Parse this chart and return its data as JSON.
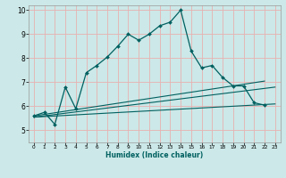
{
  "xlabel": "Humidex (Indice chaleur)",
  "xlim": [
    -0.5,
    23.5
  ],
  "ylim": [
    4.5,
    10.2
  ],
  "yticks": [
    5,
    6,
    7,
    8,
    9,
    10
  ],
  "xticks": [
    0,
    1,
    2,
    3,
    4,
    5,
    6,
    7,
    8,
    9,
    10,
    11,
    12,
    13,
    14,
    15,
    16,
    17,
    18,
    19,
    20,
    21,
    22,
    23
  ],
  "bg_color": "#cce8e8",
  "grid_color_major": "#e8b0b0",
  "line_color": "#006060",
  "main_line_x": [
    0,
    1,
    2,
    3,
    4,
    5,
    6,
    7,
    8,
    9,
    10,
    11,
    12,
    13,
    14,
    15,
    16,
    17,
    18,
    19,
    20,
    21,
    22
  ],
  "main_line_y": [
    5.6,
    5.75,
    5.25,
    6.8,
    5.9,
    7.4,
    7.7,
    8.05,
    8.5,
    9.0,
    8.75,
    9.0,
    9.35,
    9.5,
    10.0,
    8.3,
    7.6,
    7.7,
    7.2,
    6.85,
    6.85,
    6.15,
    6.05
  ],
  "line2_x": [
    0,
    23
  ],
  "line2_y": [
    5.55,
    6.8
  ],
  "line3_x": [
    0,
    23
  ],
  "line3_y": [
    5.55,
    6.1
  ],
  "line4_x": [
    0,
    22
  ],
  "line4_y": [
    5.6,
    7.05
  ]
}
